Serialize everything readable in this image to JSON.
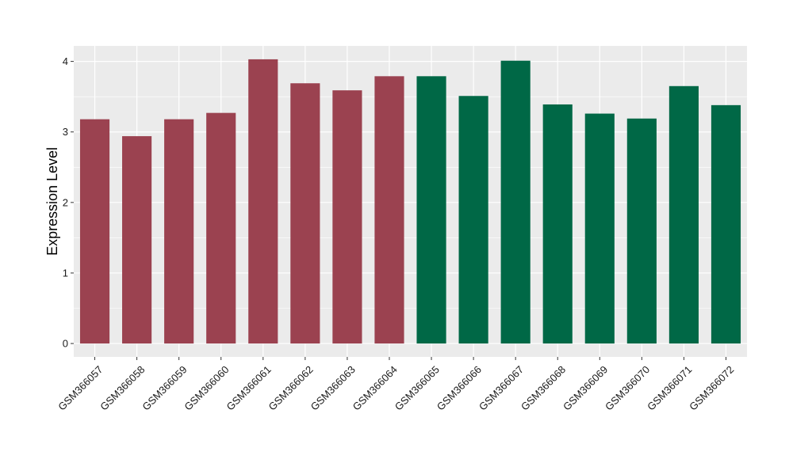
{
  "chart_data": {
    "type": "bar",
    "title": "",
    "xlabel": "",
    "ylabel": "Expression Level",
    "ylim": [
      -0.19,
      4.22
    ],
    "yticks": [
      0,
      1,
      2,
      3,
      4
    ],
    "grid": true,
    "legend": "none",
    "categories": [
      "GSM366057",
      "GSM366058",
      "GSM366059",
      "GSM366060",
      "GSM366061",
      "GSM366062",
      "GSM366063",
      "GSM366064",
      "GSM366065",
      "GSM366066",
      "GSM366067",
      "GSM366068",
      "GSM366069",
      "GSM366070",
      "GSM366071",
      "GSM366072"
    ],
    "values": [
      3.18,
      2.94,
      3.18,
      3.27,
      4.03,
      3.69,
      3.59,
      3.79,
      3.79,
      3.51,
      4.01,
      3.39,
      3.26,
      3.19,
      3.65,
      3.38
    ],
    "bar_colors": [
      "#9b4250",
      "#9b4250",
      "#9b4250",
      "#9b4250",
      "#9b4250",
      "#9b4250",
      "#9b4250",
      "#9b4250",
      "#006846",
      "#006846",
      "#006846",
      "#006846",
      "#006846",
      "#006846",
      "#006846",
      "#006846"
    ],
    "panel_background": "#ebebeb",
    "grid_color": "#ffffff"
  }
}
